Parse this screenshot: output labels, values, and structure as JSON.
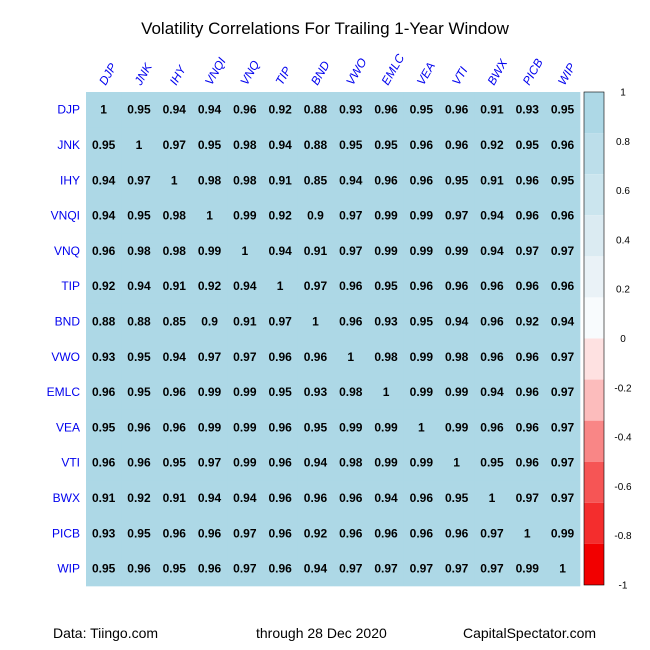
{
  "footer": {
    "source": "Data: Tiingo.com",
    "date_range": "through 28 Dec 2020",
    "site": "CapitalSpectator.com"
  },
  "chart_data": {
    "type": "heatmap",
    "title": "Volatility Correlations For Trailing 1-Year Window",
    "columns": [
      "DJP",
      "JNK",
      "IHY",
      "VNQI",
      "VNQ",
      "TIP",
      "BND",
      "VWO",
      "EMLC",
      "VEA",
      "VTI",
      "BWX",
      "PICB",
      "WIP"
    ],
    "rows": [
      "DJP",
      "JNK",
      "IHY",
      "VNQI",
      "VNQ",
      "TIP",
      "BND",
      "VWO",
      "EMLC",
      "VEA",
      "VTI",
      "BWX",
      "PICB",
      "WIP"
    ],
    "values": [
      [
        1,
        0.95,
        0.94,
        0.94,
        0.96,
        0.92,
        0.88,
        0.93,
        0.96,
        0.95,
        0.96,
        0.91,
        0.93,
        0.95
      ],
      [
        0.95,
        1,
        0.97,
        0.95,
        0.98,
        0.94,
        0.88,
        0.95,
        0.95,
        0.96,
        0.96,
        0.92,
        0.95,
        0.96
      ],
      [
        0.94,
        0.97,
        1,
        0.98,
        0.98,
        0.91,
        0.85,
        0.94,
        0.96,
        0.96,
        0.95,
        0.91,
        0.96,
        0.95
      ],
      [
        0.94,
        0.95,
        0.98,
        1,
        0.99,
        0.92,
        0.9,
        0.97,
        0.99,
        0.99,
        0.97,
        0.94,
        0.96,
        0.96
      ],
      [
        0.96,
        0.98,
        0.98,
        0.99,
        1,
        0.94,
        0.91,
        0.97,
        0.99,
        0.99,
        0.99,
        0.94,
        0.97,
        0.97
      ],
      [
        0.92,
        0.94,
        0.91,
        0.92,
        0.94,
        1,
        0.97,
        0.96,
        0.95,
        0.96,
        0.96,
        0.96,
        0.96,
        0.96
      ],
      [
        0.88,
        0.88,
        0.85,
        0.9,
        0.91,
        0.97,
        1,
        0.96,
        0.93,
        0.95,
        0.94,
        0.96,
        0.92,
        0.94
      ],
      [
        0.93,
        0.95,
        0.94,
        0.97,
        0.97,
        0.96,
        0.96,
        1,
        0.98,
        0.99,
        0.98,
        0.96,
        0.96,
        0.97
      ],
      [
        0.96,
        0.95,
        0.96,
        0.99,
        0.99,
        0.95,
        0.93,
        0.98,
        1,
        0.99,
        0.99,
        0.94,
        0.96,
        0.97
      ],
      [
        0.95,
        0.96,
        0.96,
        0.99,
        0.99,
        0.96,
        0.95,
        0.99,
        0.99,
        1,
        0.99,
        0.96,
        0.96,
        0.97
      ],
      [
        0.96,
        0.96,
        0.95,
        0.97,
        0.99,
        0.96,
        0.94,
        0.98,
        0.99,
        0.99,
        1,
        0.95,
        0.96,
        0.97
      ],
      [
        0.91,
        0.92,
        0.91,
        0.94,
        0.94,
        0.96,
        0.96,
        0.96,
        0.94,
        0.96,
        0.95,
        1,
        0.97,
        0.97
      ],
      [
        0.93,
        0.95,
        0.96,
        0.96,
        0.97,
        0.96,
        0.92,
        0.96,
        0.96,
        0.96,
        0.96,
        0.97,
        1,
        0.99
      ],
      [
        0.95,
        0.96,
        0.95,
        0.96,
        0.97,
        0.96,
        0.94,
        0.97,
        0.97,
        0.97,
        0.97,
        0.97,
        0.99,
        1
      ]
    ],
    "cell_color": "#add8e6",
    "colorbar": {
      "range": [
        -1,
        1
      ],
      "tick_labels": [
        "1",
        "0.8",
        "0.6",
        "0.4",
        "0.2",
        "0",
        "-0.2",
        "-0.4",
        "-0.6",
        "-0.8",
        "-1"
      ],
      "bands_top_to_bottom": [
        "#add8e6",
        "#bcdeea",
        "#cbe5ee",
        "#dbebf2",
        "#eaf2f7",
        "#f8fbfd",
        "#fee1e1",
        "#fcbcbc",
        "#f98686",
        "#f65555",
        "#f42d2d",
        "#f20000"
      ]
    },
    "grid": false,
    "legend_position": "right"
  }
}
